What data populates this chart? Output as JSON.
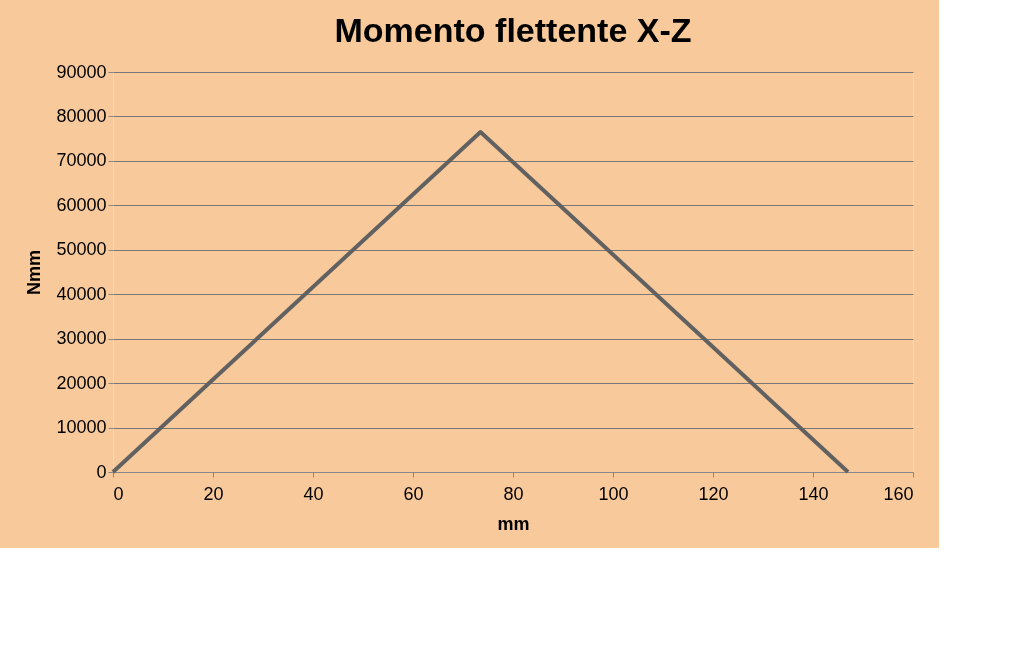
{
  "chart_data": {
    "type": "line",
    "title": "Momento flettente X-Z",
    "xlabel": "mm",
    "ylabel": "Nmm",
    "x": [
      0,
      73.5,
      147
    ],
    "series": [
      {
        "color": "#616161",
        "values": [
          0,
          76500,
          0
        ]
      }
    ],
    "xlim": [
      0,
      160
    ],
    "xticks": [
      0,
      20,
      40,
      60,
      80,
      100,
      120,
      140,
      160
    ],
    "ylim": [
      0,
      90000
    ],
    "yticks": [
      0,
      10000,
      20000,
      30000,
      40000,
      50000,
      60000,
      70000,
      80000,
      90000
    ],
    "grid": "y",
    "marker": "none",
    "line_style": "solid"
  }
}
